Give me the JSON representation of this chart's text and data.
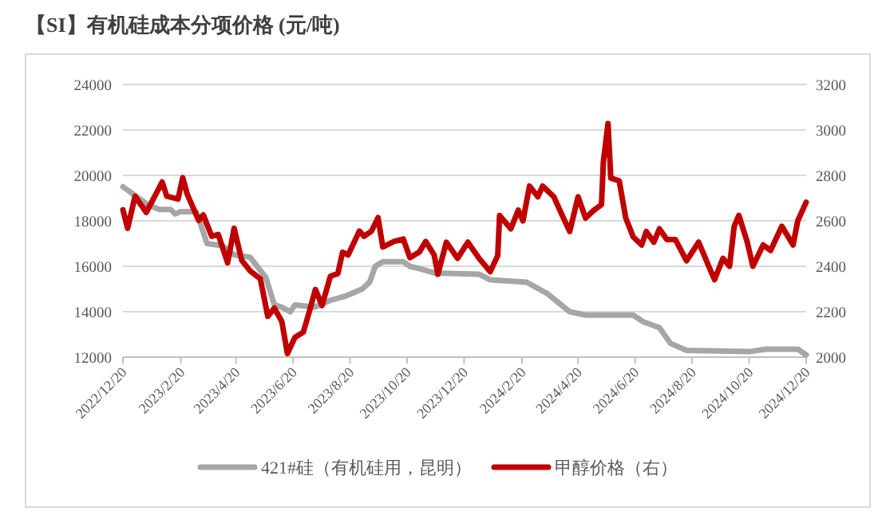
{
  "chart_data": {
    "type": "line",
    "title": "【SI】有机硅成本分项价格 (元/吨)",
    "xlim": [
      "2022-12-20",
      "2024-12-20"
    ],
    "xticks": [
      {
        "value": "2022-12-20",
        "label": "2022/12/20"
      },
      {
        "value": "2023-02-20",
        "label": "2023/2/20"
      },
      {
        "value": "2023-04-20",
        "label": "2023/4/20"
      },
      {
        "value": "2023-06-20",
        "label": "2023/6/20"
      },
      {
        "value": "2023-08-20",
        "label": "2023/8/20"
      },
      {
        "value": "2023-10-20",
        "label": "2023/10/20"
      },
      {
        "value": "2023-12-20",
        "label": "2023/12/20"
      },
      {
        "value": "2024-02-20",
        "label": "2024/2/20"
      },
      {
        "value": "2024-04-20",
        "label": "2024/4/20"
      },
      {
        "value": "2024-06-20",
        "label": "2024/6/20"
      },
      {
        "value": "2024-08-20",
        "label": "2024/8/20"
      },
      {
        "value": "2024-10-20",
        "label": "2024/10/20"
      },
      {
        "value": "2024-12-20",
        "label": "2024/12/20"
      }
    ],
    "ylim": [
      12000,
      24000
    ],
    "yticks": [
      12000,
      14000,
      16000,
      18000,
      20000,
      22000,
      24000
    ],
    "y2lim": [
      2000,
      3200
    ],
    "y2ticks": [
      2000,
      2200,
      2400,
      2600,
      2800,
      3000,
      3200
    ],
    "grid": "y",
    "legend": "bottom",
    "series": [
      {
        "name": "421#硅（有机硅用，昆明）",
        "color": "#a6a6a6",
        "x": [
          "2022-12-20",
          "2023-01-16",
          "2023-01-28",
          "2023-02-09",
          "2023-02-14",
          "2023-02-19",
          "2023-03-08",
          "2023-03-12",
          "2023-03-20",
          "2023-04-06",
          "2023-04-18",
          "2023-05-05",
          "2023-05-22",
          "2023-05-31",
          "2023-06-08",
          "2023-06-17",
          "2023-06-22",
          "2023-07-13",
          "2023-07-30",
          "2023-08-16",
          "2023-09-02",
          "2023-09-10",
          "2023-09-16",
          "2023-09-24",
          "2023-10-16",
          "2023-10-23",
          "2023-11-02",
          "2023-11-19",
          "2024-01-05",
          "2024-01-17",
          "2024-02-25",
          "2024-03-18",
          "2024-04-11",
          "2024-04-28",
          "2024-06-18",
          "2024-06-29",
          "2024-07-16",
          "2024-07-28",
          "2024-08-14",
          "2024-10-21",
          "2024-11-07",
          "2024-12-11",
          "2024-12-20"
        ],
        "values": [
          19500,
          18700,
          18500,
          18500,
          18300,
          18400,
          18400,
          18000,
          17000,
          16900,
          16500,
          16400,
          15500,
          14300,
          14200,
          14000,
          14300,
          14200,
          14500,
          14700,
          15000,
          15300,
          16000,
          16200,
          16200,
          16000,
          15900,
          15700,
          15650,
          15400,
          15300,
          14800,
          14000,
          13850,
          13850,
          13550,
          13300,
          12600,
          12300,
          12250,
          12350,
          12350,
          12100
        ]
      },
      {
        "name": "甲醇价格（右）",
        "color": "#c00000",
        "axis": "y2",
        "x": [
          "2022-12-20",
          "2022-12-25",
          "2023-01-02",
          "2023-01-14",
          "2023-01-31",
          "2023-02-05",
          "2023-02-17",
          "2023-02-22",
          "2023-02-27",
          "2023-03-11",
          "2023-03-16",
          "2023-03-25",
          "2023-04-01",
          "2023-04-11",
          "2023-04-18",
          "2023-04-26",
          "2023-05-05",
          "2023-05-16",
          "2023-05-24",
          "2023-05-31",
          "2023-06-08",
          "2023-06-14",
          "2023-06-22",
          "2023-07-01",
          "2023-07-06",
          "2023-07-14",
          "2023-07-21",
          "2023-07-30",
          "2023-08-07",
          "2023-08-12",
          "2023-08-18",
          "2023-08-30",
          "2023-09-04",
          "2023-09-12",
          "2023-09-19",
          "2023-09-24",
          "2023-10-06",
          "2023-10-16",
          "2023-10-23",
          "2023-11-02",
          "2023-11-09",
          "2023-11-18",
          "2023-11-22",
          "2023-12-01",
          "2023-12-13",
          "2023-12-24",
          "2024-01-05",
          "2024-01-17",
          "2024-01-25",
          "2024-01-27",
          "2024-02-08",
          "2024-02-16",
          "2024-02-21",
          "2024-02-28",
          "2024-03-08",
          "2024-03-13",
          "2024-03-25",
          "2024-04-03",
          "2024-04-11",
          "2024-04-20",
          "2024-04-28",
          "2024-05-07",
          "2024-05-15",
          "2024-05-17",
          "2024-05-22",
          "2024-05-25",
          "2024-06-03",
          "2024-06-10",
          "2024-06-18",
          "2024-06-27",
          "2024-07-02",
          "2024-07-10",
          "2024-07-16",
          "2024-07-24",
          "2024-08-02",
          "2024-08-14",
          "2024-08-27",
          "2024-09-08",
          "2024-09-13",
          "2024-09-22",
          "2024-09-29",
          "2024-10-04",
          "2024-10-09",
          "2024-10-18",
          "2024-10-24",
          "2024-11-04",
          "2024-11-12",
          "2024-11-24",
          "2024-12-06",
          "2024-12-11",
          "2024-12-20"
        ],
        "values": [
          2649,
          2567,
          2708,
          2637,
          2771,
          2708,
          2696,
          2790,
          2715,
          2602,
          2626,
          2532,
          2540,
          2415,
          2567,
          2427,
          2380,
          2345,
          2180,
          2216,
          2157,
          2016,
          2087,
          2110,
          2180,
          2298,
          2227,
          2356,
          2368,
          2462,
          2450,
          2555,
          2532,
          2555,
          2614,
          2485,
          2509,
          2520,
          2438,
          2462,
          2509,
          2450,
          2365,
          2506,
          2435,
          2506,
          2435,
          2376,
          2447,
          2624,
          2565,
          2647,
          2600,
          2753,
          2706,
          2753,
          2706,
          2624,
          2553,
          2706,
          2612,
          2647,
          2671,
          2859,
          3028,
          2788,
          2776,
          2612,
          2529,
          2494,
          2553,
          2506,
          2565,
          2518,
          2518,
          2424,
          2506,
          2388,
          2341,
          2435,
          2400,
          2576,
          2624,
          2506,
          2400,
          2494,
          2470,
          2576,
          2494,
          2600,
          2682
        ]
      }
    ]
  }
}
